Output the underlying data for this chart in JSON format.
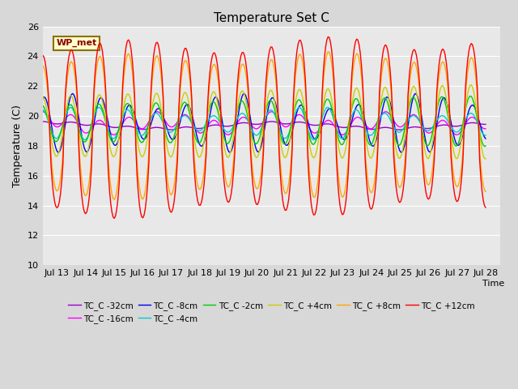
{
  "title": "Temperature Set C",
  "xlabel": "Time",
  "ylabel": "Temperature (C)",
  "ylim": [
    10,
    26
  ],
  "yticks": [
    10,
    12,
    14,
    16,
    18,
    20,
    22,
    24,
    26
  ],
  "x_labels": [
    "Jul 13",
    "Jul 14",
    "Jul 15",
    "Jul 16",
    "Jul 17",
    "Jul 18",
    "Jul 19",
    "Jul 20",
    "Jul 21",
    "Jul 22",
    "Jul 23",
    "Jul 24",
    "Jul 25",
    "Jul 26",
    "Jul 27",
    "Jul 28"
  ],
  "annotation_text": "WP_met",
  "annotation_color": "#8B0000",
  "annotation_bg": "#FFFFCC",
  "legend_entries": [
    {
      "label": "TC_C -32cm",
      "color": "#9900CC"
    },
    {
      "label": "TC_C -16cm",
      "color": "#FF00FF"
    },
    {
      "label": "TC_C -8cm",
      "color": "#0000EE"
    },
    {
      "label": "TC_C -4cm",
      "color": "#00CCCC"
    },
    {
      "label": "TC_C -2cm",
      "color": "#00CC00"
    },
    {
      "label": "TC_C +4cm",
      "color": "#CCCC00"
    },
    {
      "label": "TC_C +8cm",
      "color": "#FFA500"
    },
    {
      "label": "TC_C +12cm",
      "color": "#FF0000"
    }
  ],
  "bg_color": "#E8E8E8",
  "grid_color": "#FFFFFF",
  "fig_bg": "#D8D8D8"
}
